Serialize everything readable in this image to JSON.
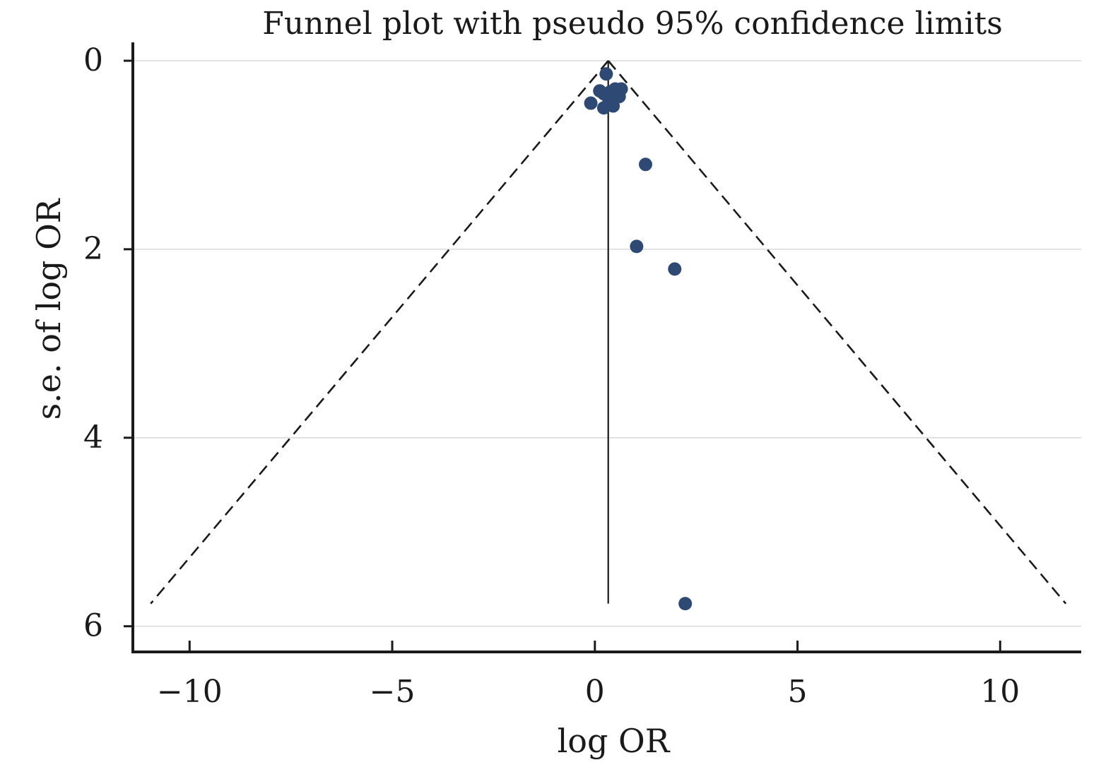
{
  "chart_data": {
    "type": "scatter",
    "title": "Funnel plot with pseudo 95% confidence limits",
    "xlabel": "log OR",
    "ylabel": "s.e. of log OR",
    "xlim": [
      -11.4,
      12.0
    ],
    "ylim": [
      0,
      6.1
    ],
    "y_reversed": true,
    "x_ticks": [
      -10,
      -5,
      0,
      5,
      10
    ],
    "x_tick_labels": [
      "−10",
      "−5",
      "0",
      "5",
      "10"
    ],
    "y_ticks": [
      0,
      2,
      4,
      6
    ],
    "y_tick_labels": [
      "0",
      "2",
      "4",
      "6"
    ],
    "grid": "horizontal",
    "pooled_effect": 0.33,
    "effect_line_se_range": [
      0,
      5.76
    ],
    "pseudo_ci": {
      "z": 1.96,
      "se_max": 5.76
    },
    "marker_color": "#2e4a74",
    "series": [
      {
        "x": [
          0.28,
          0.12,
          0.22,
          0.38,
          0.5,
          0.65,
          0.6,
          -0.1,
          0.45,
          0.22,
          0.35,
          1.25,
          1.03,
          1.97,
          2.23
        ],
        "y": [
          0.14,
          0.32,
          0.35,
          0.33,
          0.3,
          0.3,
          0.38,
          0.45,
          0.48,
          0.5,
          0.42,
          1.1,
          1.97,
          2.21,
          5.76
        ]
      }
    ]
  }
}
